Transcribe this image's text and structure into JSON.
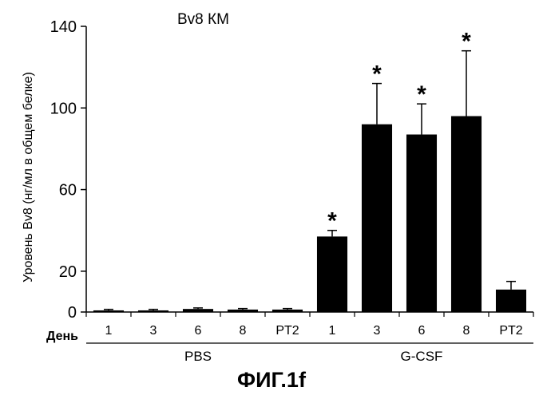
{
  "chart_data": {
    "type": "bar",
    "title": "Bv8  КМ",
    "ylabel": "Уровень Bv8 (нг/мл в общем белке)",
    "day_label": "День",
    "ylim": [
      0,
      140
    ],
    "yticks": [
      0,
      20,
      60,
      100,
      140
    ],
    "categories": [
      "1",
      "3",
      "6",
      "8",
      "PT2",
      "1",
      "3",
      "6",
      "8",
      "PT2"
    ],
    "values": [
      0.8,
      0.8,
      1.5,
      1.2,
      1.2,
      37,
      92,
      87,
      96,
      11
    ],
    "errors": [
      0.5,
      0.5,
      0.5,
      0.5,
      0.5,
      3,
      20,
      15,
      32,
      4
    ],
    "significant": [
      false,
      false,
      false,
      false,
      false,
      true,
      true,
      true,
      true,
      false
    ],
    "significance_marker": "*",
    "groups": [
      {
        "label": "PBS",
        "start": 0,
        "end": 4
      },
      {
        "label": "G-CSF",
        "start": 5,
        "end": 9
      }
    ],
    "bar_color": "#000000"
  },
  "caption": "ФИГ.1f"
}
